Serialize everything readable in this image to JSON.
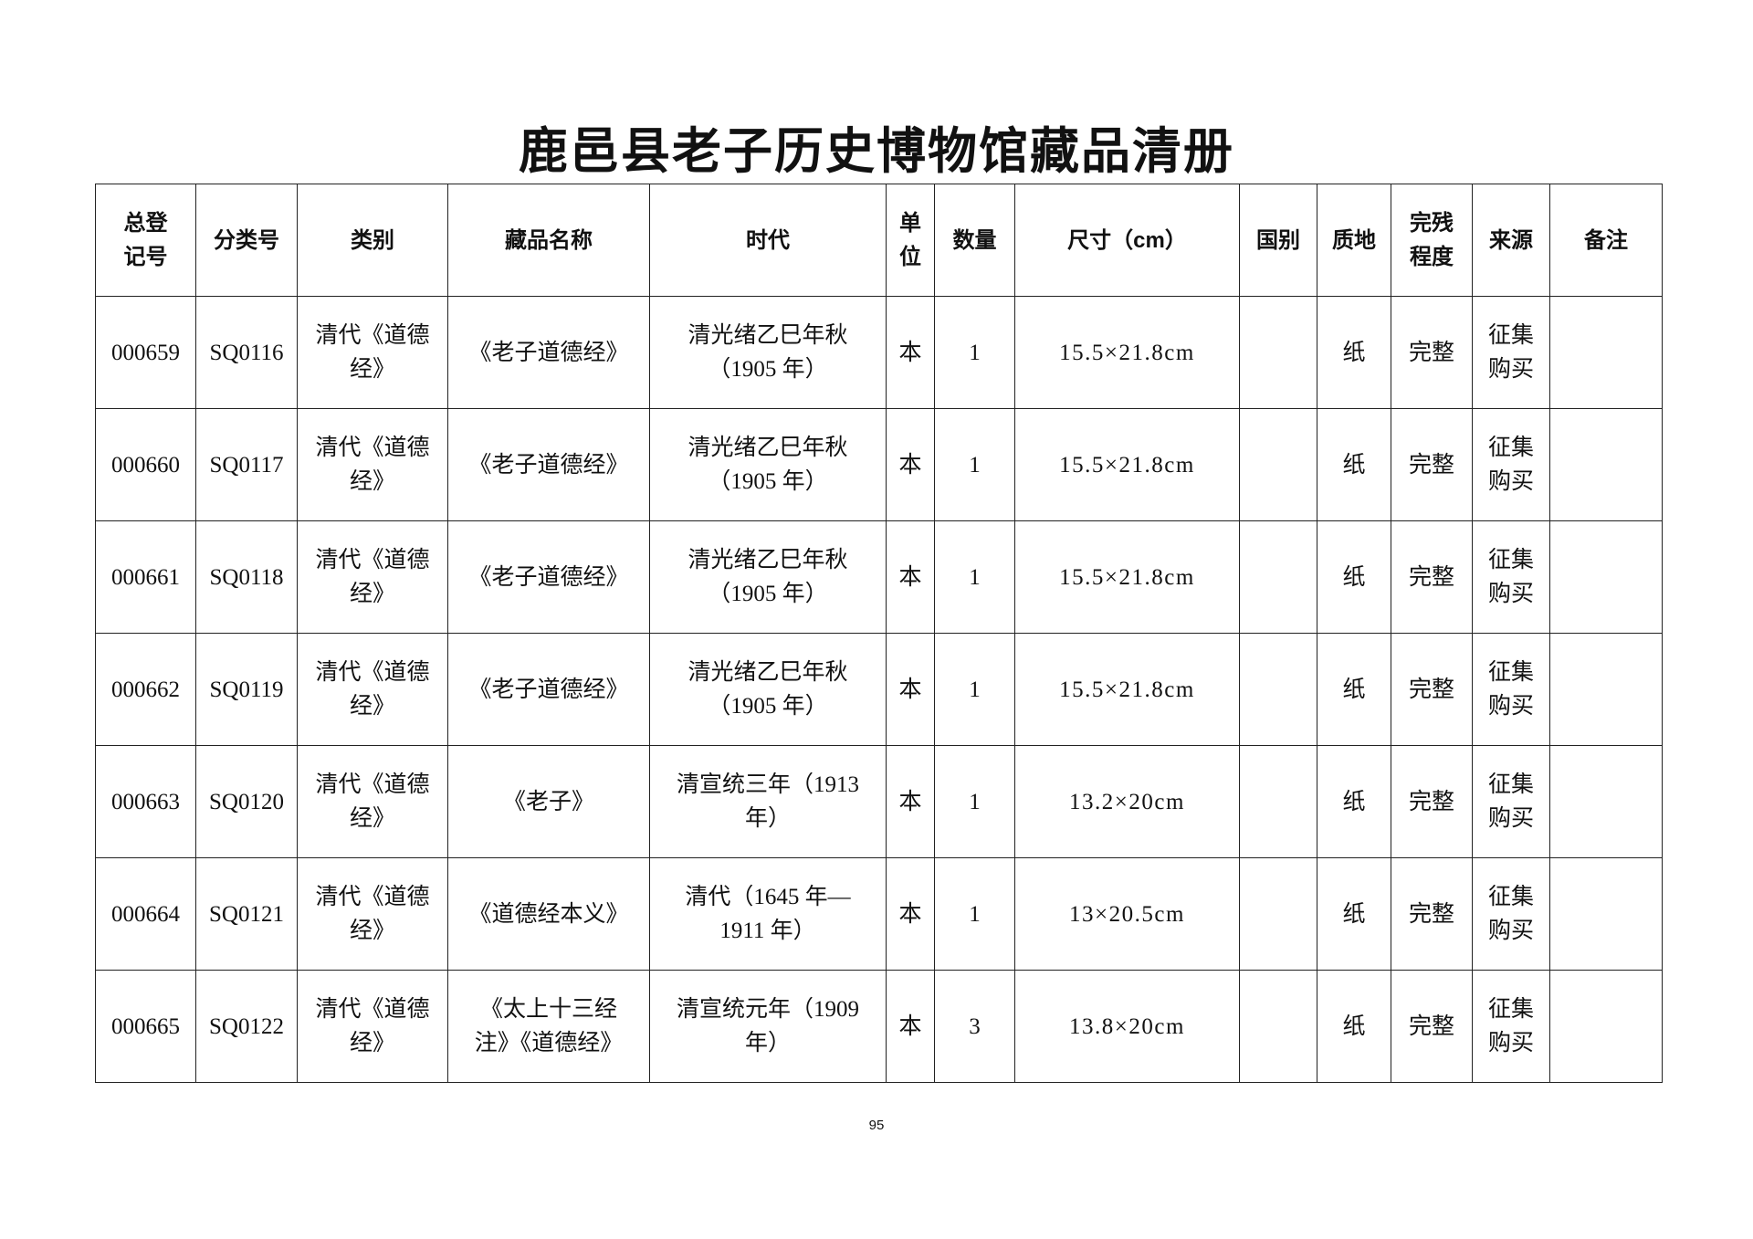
{
  "page": {
    "title": "鹿邑县老子历史博物馆藏品清册",
    "page_number": "95"
  },
  "table": {
    "columns": [
      [
        "总登",
        "记号"
      ],
      "分类号",
      "类别",
      "藏品名称",
      "时代",
      [
        "单",
        "位"
      ],
      "数量",
      "尺寸（cm）",
      "国别",
      "质地",
      [
        "完残",
        "程度"
      ],
      "来源",
      "备注"
    ],
    "rows": [
      [
        "000659",
        "SQ0116",
        [
          "清代《道德",
          "经》"
        ],
        "《老子道德经》",
        [
          "清光绪乙巳年秋",
          "（1905 年）"
        ],
        "本",
        1,
        "15.5×21.8cm",
        null,
        "纸",
        "完整",
        [
          "征集",
          "购买"
        ],
        null
      ],
      [
        "000660",
        "SQ0117",
        [
          "清代《道德",
          "经》"
        ],
        "《老子道德经》",
        [
          "清光绪乙巳年秋",
          "（1905 年）"
        ],
        "本",
        1,
        "15.5×21.8cm",
        null,
        "纸",
        "完整",
        [
          "征集",
          "购买"
        ],
        null
      ],
      [
        "000661",
        "SQ0118",
        [
          "清代《道德",
          "经》"
        ],
        "《老子道德经》",
        [
          "清光绪乙巳年秋",
          "（1905 年）"
        ],
        "本",
        1,
        "15.5×21.8cm",
        null,
        "纸",
        "完整",
        [
          "征集",
          "购买"
        ],
        null
      ],
      [
        "000662",
        "SQ0119",
        [
          "清代《道德",
          "经》"
        ],
        "《老子道德经》",
        [
          "清光绪乙巳年秋",
          "（1905 年）"
        ],
        "本",
        1,
        "15.5×21.8cm",
        null,
        "纸",
        "完整",
        [
          "征集",
          "购买"
        ],
        null
      ],
      [
        "000663",
        "SQ0120",
        [
          "清代《道德",
          "经》"
        ],
        "《老子》",
        [
          "清宣统三年（1913",
          "年）"
        ],
        "本",
        1,
        "13.2×20cm",
        null,
        "纸",
        "完整",
        [
          "征集",
          "购买"
        ],
        null
      ],
      [
        "000664",
        "SQ0121",
        [
          "清代《道德",
          "经》"
        ],
        "《道德经本义》",
        [
          "清代（1645 年—",
          "1911 年）"
        ],
        "本",
        1,
        "13×20.5cm",
        null,
        "纸",
        "完整",
        [
          "征集",
          "购买"
        ],
        null
      ],
      [
        "000665",
        "SQ0122",
        [
          "清代《道德",
          "经》"
        ],
        [
          "《太上十三经",
          "注》《道德经》"
        ],
        [
          "清宣统元年（1909",
          "年）"
        ],
        "本",
        3,
        "13.8×20cm",
        null,
        "纸",
        "完整",
        [
          "征集",
          "购买"
        ],
        null
      ]
    ]
  }
}
